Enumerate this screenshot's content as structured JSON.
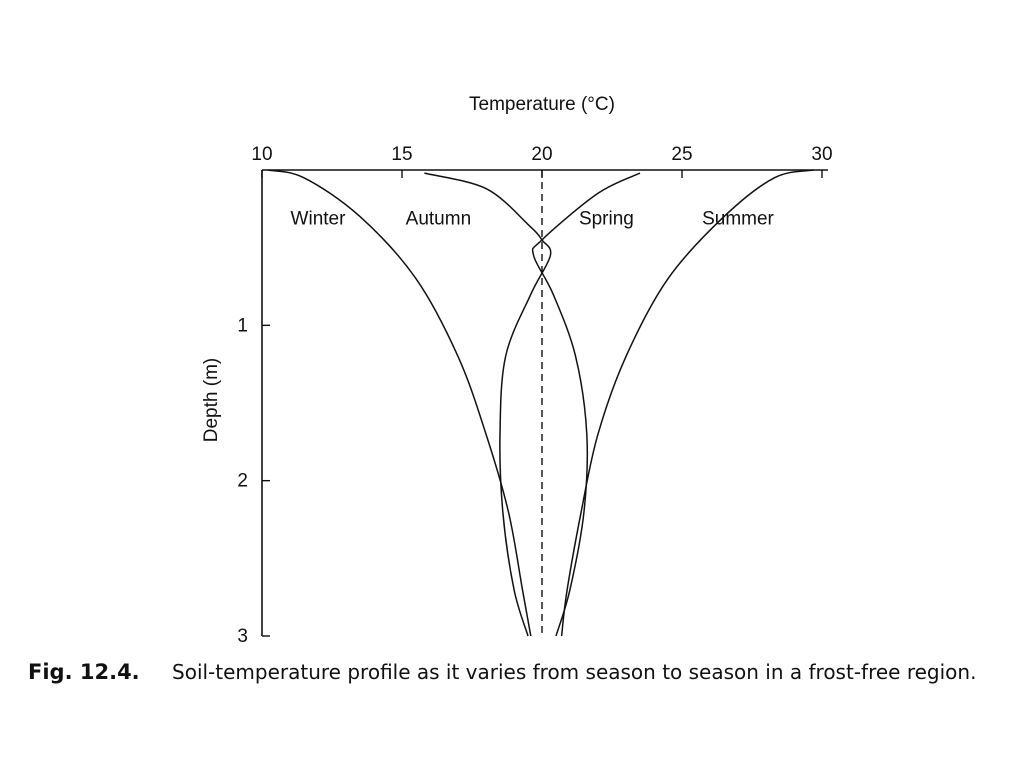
{
  "chart_data": {
    "type": "line",
    "title": "",
    "xlabel": "Temperature (°C)",
    "ylabel": "Depth (m)",
    "xlim": [
      10,
      30
    ],
    "ylim": [
      0,
      3
    ],
    "x_axis_position": "top",
    "y_axis_inverted": true,
    "x_ticks": [
      10,
      15,
      20,
      25,
      30
    ],
    "x_tick_labels": [
      "10",
      "15",
      "20",
      "25",
      "30"
    ],
    "y_ticks": [
      1,
      2,
      3
    ],
    "y_tick_labels": [
      "1",
      "2",
      "3"
    ],
    "grid": false,
    "legend": "none",
    "reference_line": {
      "x": 20,
      "style": "dashed"
    },
    "series": [
      {
        "name": "Winter",
        "label": "Winter",
        "points": [
          [
            10.2,
            0.0
          ],
          [
            11.5,
            0.05
          ],
          [
            13.5,
            0.3
          ],
          [
            15.5,
            0.7
          ],
          [
            17.0,
            1.2
          ],
          [
            18.0,
            1.7
          ],
          [
            18.8,
            2.2
          ],
          [
            19.3,
            2.7
          ],
          [
            19.6,
            3.0
          ]
        ]
      },
      {
        "name": "Autumn",
        "label": "Autumn",
        "points": [
          [
            15.8,
            0.02
          ],
          [
            18.0,
            0.12
          ],
          [
            19.5,
            0.35
          ],
          [
            20.0,
            0.45
          ],
          [
            20.3,
            0.55
          ],
          [
            19.6,
            0.8
          ],
          [
            18.7,
            1.2
          ],
          [
            18.5,
            1.7
          ],
          [
            18.6,
            2.2
          ],
          [
            19.0,
            2.7
          ],
          [
            19.5,
            3.0
          ]
        ]
      },
      {
        "name": "Spring",
        "label": "Spring",
        "points": [
          [
            23.5,
            0.02
          ],
          [
            22.0,
            0.15
          ],
          [
            20.0,
            0.45
          ],
          [
            19.7,
            0.55
          ],
          [
            20.4,
            0.8
          ],
          [
            21.2,
            1.2
          ],
          [
            21.6,
            1.7
          ],
          [
            21.5,
            2.2
          ],
          [
            21.0,
            2.7
          ],
          [
            20.5,
            3.0
          ]
        ]
      },
      {
        "name": "Summer",
        "label": "Summer",
        "points": [
          [
            29.7,
            0.0
          ],
          [
            28.3,
            0.05
          ],
          [
            26.5,
            0.3
          ],
          [
            24.5,
            0.7
          ],
          [
            23.0,
            1.2
          ],
          [
            22.0,
            1.7
          ],
          [
            21.4,
            2.2
          ],
          [
            20.9,
            2.7
          ],
          [
            20.7,
            3.0
          ]
        ]
      }
    ],
    "annotations": [
      {
        "text": "Winter",
        "x": 12.0,
        "y": 0.35
      },
      {
        "text": "Autumn",
        "x": 16.3,
        "y": 0.35
      },
      {
        "text": "Spring",
        "x": 22.3,
        "y": 0.35
      },
      {
        "text": "Summer",
        "x": 27.0,
        "y": 0.35
      }
    ]
  },
  "caption": {
    "figure_label": "Fig. 12.4.",
    "text": "Soil-temperature profile as it varies from season to season in a frost-free region."
  }
}
